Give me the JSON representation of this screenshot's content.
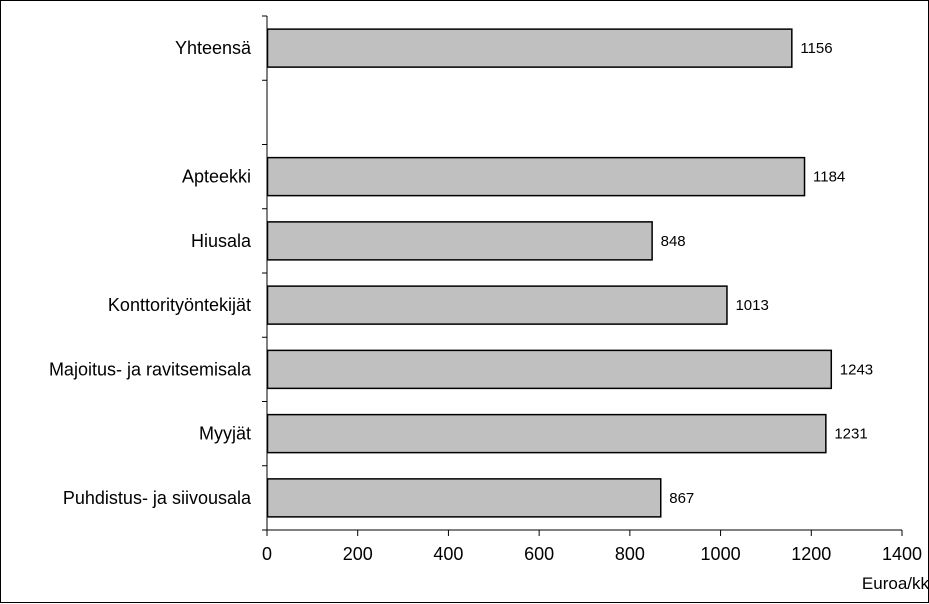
{
  "chart_data": {
    "type": "bar",
    "orientation": "horizontal",
    "categories": [
      "Yhteensä",
      "",
      "Apteekki",
      "Hiusala",
      "Konttorityöntekijät",
      "Majoitus- ja ravitsemisala",
      "Myyjät",
      "Puhdistus- ja siivousala"
    ],
    "values": [
      1156,
      null,
      1184,
      848,
      1013,
      1243,
      1231,
      867
    ],
    "data_labels": [
      "1156",
      "",
      "1184",
      "848",
      "1013",
      "1243",
      "1231",
      "867"
    ],
    "xlim": [
      0,
      1400
    ],
    "xticks": [
      0,
      200,
      400,
      600,
      800,
      1000,
      1200,
      1400
    ],
    "xtick_labels": [
      "0",
      "200",
      "400",
      "600",
      "800",
      "1000",
      "1200",
      "1400"
    ],
    "xlabel": "Euroa/kk",
    "ylabel": "",
    "title": "",
    "grid": false,
    "bar_color": "#c0c0c0",
    "bar_edge_color": "#000000"
  }
}
